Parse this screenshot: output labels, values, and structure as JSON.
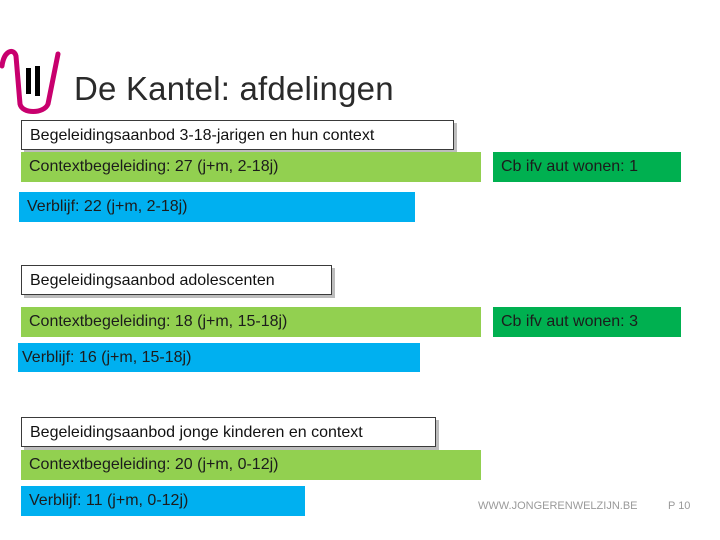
{
  "title": "De Kantel: afdelingen",
  "logo": {
    "icon": "jongerenwelzijn-logo-icon",
    "colors": [
      "#c8006e",
      "#000000"
    ]
  },
  "sections": [
    {
      "header": "Begeleidingsaanbod 3-18-jarigen en hun context",
      "context": "Contextbegeleiding: 27 (j+m, 2-18j)",
      "cb": "Cb ifv aut wonen: 1",
      "verblijf": "Verblijf: 22 (j+m, 2-18j)"
    },
    {
      "header": "Begeleidingsaanbod adolescenten",
      "context": "Contextbegeleiding: 18 (j+m, 15-18j)",
      "cb": "Cb ifv aut wonen: 3",
      "verblijf": "Verblijf: 16 (j+m, 15-18j)"
    },
    {
      "header": "Begeleidingsaanbod jonge kinderen en context",
      "context": "Contextbegeleiding: 20 (j+m, 0-12j)",
      "verblijf": "Verblijf: 11 (j+m, 0-12j)"
    }
  ],
  "footer": {
    "url": "WWW.JONGERENWELZIJN.BE",
    "page": "P 10"
  },
  "colors": {
    "light_green": "#92d050",
    "dark_green": "#00b050",
    "blue": "#00b0f0",
    "brand": "#c8006e"
  }
}
